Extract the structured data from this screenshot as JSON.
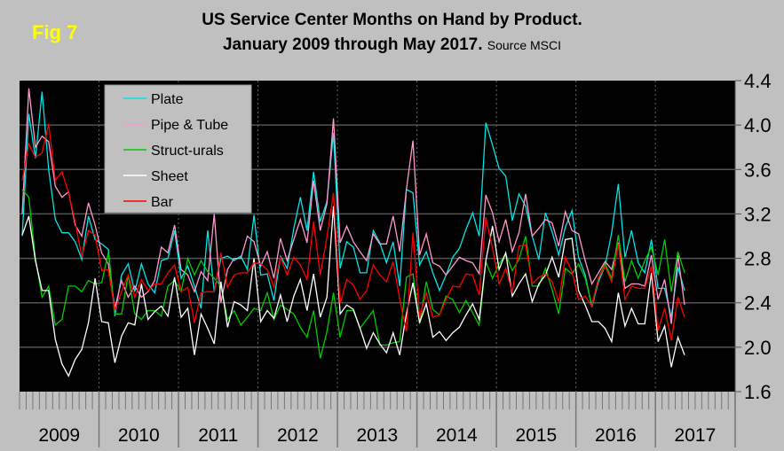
{
  "fig_label": "Fig 7",
  "chart_data": {
    "type": "line",
    "title_line1": "US Service Center Months on Hand by Product.",
    "title_line2": "January 2009 through May 2017.",
    "source": "Source MSCI",
    "x_start": "2009-01",
    "x_end": "2017-05",
    "x_frequency": "monthly",
    "year_labels": [
      "2009",
      "2010",
      "2011",
      "2012",
      "2013",
      "2014",
      "2015",
      "2016",
      "2017"
    ],
    "ylim": [
      1.6,
      4.4
    ],
    "yticks": [
      "1.6",
      "2.0",
      "2.4",
      "2.8",
      "3.2",
      "3.6",
      "4.0",
      "4.4"
    ],
    "y_axis_side": "right",
    "grid": true,
    "background": "#000000",
    "legend_placement": "top-left",
    "series": [
      {
        "name": "Plate",
        "color": "#00e5e5",
        "values": [
          3.0,
          4.1,
          3.7,
          4.3,
          3.6,
          3.15,
          3.03,
          3.03,
          2.95,
          2.79,
          3.18,
          2.97,
          2.93,
          2.88,
          2.28,
          2.65,
          2.75,
          2.5,
          2.75,
          2.57,
          2.49,
          2.78,
          2.8,
          3.05,
          2.62,
          2.73,
          2.55,
          2.35,
          3.05,
          2.5,
          2.8,
          2.82,
          2.78,
          2.82,
          2.7,
          3.19,
          2.65,
          2.66,
          2.42,
          2.82,
          2.71,
          3.07,
          3.35,
          3.05,
          3.58,
          3.13,
          3.31,
          3.93,
          2.71,
          2.95,
          2.9,
          2.67,
          2.67,
          3.05,
          2.94,
          2.76,
          2.95,
          2.55,
          3.42,
          3.39,
          2.74,
          2.86,
          2.67,
          2.51,
          2.65,
          2.81,
          2.89,
          3.06,
          3.21,
          3.0,
          4.02,
          3.82,
          3.61,
          3.54,
          3.14,
          3.38,
          3.27,
          3.0,
          2.79,
          3.21,
          3.04,
          2.83,
          3.08,
          3.23,
          2.81,
          2.65,
          2.36,
          2.59,
          2.73,
          3.03,
          3.47,
          2.81,
          3.05,
          2.76,
          2.67,
          2.97,
          2.53,
          2.53,
          2.27,
          2.72,
          2.51
        ]
      },
      {
        "name": "Pipe & Tube",
        "color": "#ff99cc",
        "values": [
          3.2,
          4.33,
          3.8,
          3.9,
          3.85,
          3.45,
          3.35,
          3.4,
          3.1,
          3.0,
          3.3,
          3.1,
          2.85,
          2.75,
          2.35,
          2.6,
          2.45,
          2.55,
          2.45,
          2.5,
          2.6,
          2.9,
          2.85,
          3.1,
          2.7,
          2.65,
          2.5,
          2.68,
          2.6,
          3.2,
          2.4,
          2.7,
          2.8,
          2.8,
          3.0,
          2.95,
          2.73,
          2.86,
          2.62,
          2.98,
          2.78,
          2.97,
          3.15,
          2.94,
          3.5,
          3.05,
          3.29,
          4.06,
          2.94,
          3.09,
          2.95,
          2.86,
          2.78,
          3.02,
          2.93,
          2.93,
          3.18,
          2.86,
          3.42,
          3.86,
          2.83,
          3.02,
          2.76,
          2.73,
          2.65,
          2.73,
          2.81,
          2.78,
          2.76,
          2.66,
          3.37,
          3.21,
          2.95,
          3.15,
          2.86,
          3.03,
          3.38,
          3.0,
          3.07,
          3.15,
          3.12,
          2.91,
          3.22,
          3.05,
          3.02,
          2.78,
          2.57,
          2.67,
          2.77,
          2.7,
          2.94,
          2.53,
          2.57,
          2.57,
          2.55,
          2.83,
          2.43,
          2.61,
          2.21,
          2.83,
          2.38
        ]
      },
      {
        "name": "Struct-urals",
        "color": "#00cc00",
        "values": [
          3.42,
          3.35,
          2.8,
          2.45,
          2.55,
          2.2,
          2.25,
          2.55,
          2.55,
          2.5,
          2.6,
          2.57,
          2.58,
          2.85,
          2.3,
          2.3,
          2.65,
          2.3,
          2.25,
          2.33,
          2.33,
          2.28,
          2.55,
          2.6,
          2.5,
          2.8,
          2.65,
          2.78,
          2.68,
          2.62,
          2.55,
          2.25,
          2.33,
          2.2,
          2.27,
          2.35,
          2.33,
          2.49,
          2.25,
          2.38,
          2.34,
          2.3,
          2.18,
          2.09,
          2.33,
          1.9,
          2.14,
          2.49,
          2.09,
          2.33,
          2.33,
          2.17,
          2.25,
          2.33,
          2.02,
          2.02,
          2.04,
          2.05,
          2.63,
          2.66,
          2.21,
          2.59,
          2.34,
          2.29,
          2.46,
          2.43,
          2.31,
          2.42,
          2.31,
          2.2,
          2.77,
          2.62,
          2.75,
          2.84,
          2.69,
          2.79,
          3.0,
          2.55,
          2.55,
          2.71,
          2.52,
          2.3,
          2.71,
          2.66,
          2.75,
          2.62,
          2.38,
          2.62,
          2.75,
          2.62,
          3.01,
          2.59,
          2.78,
          2.62,
          2.78,
          2.9,
          2.65,
          2.97,
          2.5,
          2.86,
          2.67
        ]
      },
      {
        "name": "Sheet",
        "color": "#ffffff",
        "values": [
          3.01,
          3.18,
          2.78,
          2.51,
          2.51,
          2.07,
          1.85,
          1.74,
          1.89,
          1.98,
          2.22,
          2.62,
          2.23,
          2.22,
          1.86,
          2.1,
          2.22,
          2.2,
          2.57,
          2.25,
          2.32,
          2.37,
          2.28,
          2.63,
          2.27,
          2.35,
          1.93,
          2.3,
          2.17,
          2.03,
          2.59,
          2.18,
          2.41,
          2.38,
          2.33,
          2.8,
          2.23,
          2.33,
          2.26,
          2.47,
          2.23,
          2.46,
          2.61,
          2.33,
          2.66,
          2.27,
          2.45,
          3.27,
          2.3,
          2.38,
          2.34,
          2.17,
          1.99,
          2.13,
          2.03,
          1.95,
          2.13,
          1.93,
          2.3,
          2.58,
          2.22,
          2.39,
          2.09,
          2.14,
          2.06,
          2.13,
          2.18,
          2.29,
          2.39,
          2.25,
          2.78,
          3.09,
          2.7,
          2.85,
          2.46,
          2.57,
          2.66,
          2.41,
          2.57,
          2.65,
          2.81,
          2.63,
          2.97,
          2.98,
          2.51,
          2.38,
          2.23,
          2.23,
          2.17,
          2.05,
          2.49,
          2.19,
          2.35,
          2.21,
          2.21,
          2.67,
          2.05,
          2.19,
          1.82,
          2.09,
          1.93
        ]
      },
      {
        "name": "Bar",
        "color": "#ff0000",
        "values": [
          3.5,
          3.83,
          3.71,
          3.75,
          4.01,
          3.5,
          3.58,
          3.39,
          3.13,
          2.81,
          3.05,
          3.01,
          2.69,
          2.7,
          2.33,
          2.5,
          2.65,
          2.45,
          2.61,
          2.51,
          2.57,
          2.57,
          2.67,
          2.74,
          2.5,
          2.54,
          2.22,
          2.49,
          2.5,
          2.5,
          2.85,
          2.54,
          2.65,
          2.67,
          2.67,
          2.76,
          2.75,
          2.7,
          2.54,
          2.81,
          2.65,
          2.81,
          2.74,
          2.61,
          3.13,
          2.65,
          2.99,
          3.39,
          2.39,
          2.61,
          2.56,
          2.43,
          2.51,
          2.74,
          2.65,
          2.59,
          2.77,
          2.43,
          2.14,
          3.03,
          2.27,
          2.49,
          2.27,
          2.29,
          2.43,
          2.55,
          2.54,
          2.66,
          2.65,
          2.47,
          3.17,
          2.89,
          2.57,
          2.71,
          2.49,
          2.91,
          2.92,
          2.57,
          2.63,
          2.66,
          2.59,
          2.41,
          2.81,
          2.68,
          2.43,
          2.46,
          2.37,
          2.62,
          2.73,
          2.59,
          2.93,
          2.43,
          2.55,
          2.53,
          2.53,
          2.73,
          2.15,
          2.35,
          2.06,
          2.45,
          2.27
        ]
      }
    ]
  }
}
